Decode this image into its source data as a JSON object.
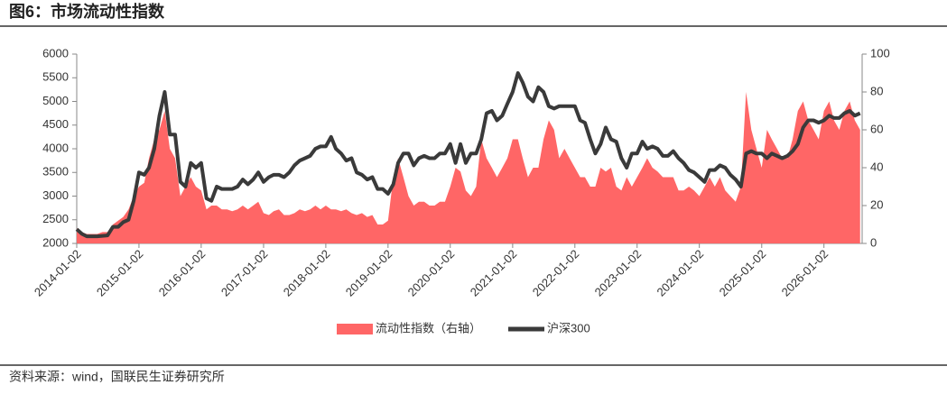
{
  "chart_data": {
    "type": "line",
    "title": "图6：市场流动性指数",
    "source": "资料来源：wind，国联民生证券研究所",
    "x": [
      "2014-01-02",
      "2014-02-02",
      "2014-03-02",
      "2014-04-02",
      "2014-05-02",
      "2014-06-02",
      "2014-07-02",
      "2014-08-02",
      "2014-09-02",
      "2014-10-02",
      "2014-11-02",
      "2014-12-02",
      "2015-01-02",
      "2015-02-02",
      "2015-03-02",
      "2015-04-02",
      "2015-05-02",
      "2015-06-02",
      "2015-07-02",
      "2015-08-02",
      "2015-09-02",
      "2015-10-02",
      "2015-11-02",
      "2015-12-02",
      "2016-01-02",
      "2016-02-02",
      "2016-03-02",
      "2016-04-02",
      "2016-05-02",
      "2016-06-02",
      "2016-07-02",
      "2016-08-02",
      "2016-09-02",
      "2016-10-02",
      "2016-11-02",
      "2016-12-02",
      "2017-01-02",
      "2017-02-02",
      "2017-03-02",
      "2017-04-02",
      "2017-05-02",
      "2017-06-02",
      "2017-07-02",
      "2017-08-02",
      "2017-09-02",
      "2017-10-02",
      "2017-11-02",
      "2017-12-02",
      "2018-01-02",
      "2018-02-02",
      "2018-03-02",
      "2018-04-02",
      "2018-05-02",
      "2018-06-02",
      "2018-07-02",
      "2018-08-02",
      "2018-09-02",
      "2018-10-02",
      "2018-11-02",
      "2018-12-02",
      "2019-01-02",
      "2019-02-02",
      "2019-03-02",
      "2019-04-02",
      "2019-05-02",
      "2019-06-02",
      "2019-07-02",
      "2019-08-02",
      "2019-09-02",
      "2019-10-02",
      "2019-11-02",
      "2019-12-02",
      "2020-01-02",
      "2020-02-02",
      "2020-03-02",
      "2020-04-02",
      "2020-05-02",
      "2020-06-02",
      "2020-07-02",
      "2020-08-02",
      "2020-09-02",
      "2020-10-02",
      "2020-11-02",
      "2020-12-02",
      "2021-01-02",
      "2021-02-02",
      "2021-03-02",
      "2021-04-02",
      "2021-05-02",
      "2021-06-02",
      "2021-07-02",
      "2021-08-02",
      "2021-09-02",
      "2021-10-02",
      "2021-11-02",
      "2021-12-02",
      "2022-01-02",
      "2022-02-02",
      "2022-03-02",
      "2022-04-02",
      "2022-05-02",
      "2022-06-02",
      "2022-07-02",
      "2022-08-02",
      "2022-09-02",
      "2022-10-02",
      "2022-11-02",
      "2022-12-02",
      "2023-01-02",
      "2023-02-02",
      "2023-03-02",
      "2023-04-02",
      "2023-05-02",
      "2023-06-02",
      "2023-07-02",
      "2023-08-02",
      "2023-09-02",
      "2023-10-02",
      "2023-11-02",
      "2023-12-02",
      "2024-01-02",
      "2024-02-02",
      "2024-03-02",
      "2024-04-02",
      "2024-05-02",
      "2024-06-02",
      "2024-07-02",
      "2024-08-02",
      "2024-09-02",
      "2024-10-02",
      "2024-11-02",
      "2024-12-02",
      "2025-01-02",
      "2025-02-02",
      "2025-03-02",
      "2025-04-02",
      "2025-05-02",
      "2025-06-02",
      "2025-07-02",
      "2025-08-02",
      "2025-09-02",
      "2025-10-02",
      "2025-11-02",
      "2025-12-02",
      "2026-01-02",
      "2026-02-02",
      "2026-03-02",
      "2026-04-02",
      "2026-05-02",
      "2026-06-02",
      "2026-07-02",
      "2026-08-02"
    ],
    "series": [
      {
        "name": "流动性指数（右轴）",
        "color": "#ff6666",
        "type": "area",
        "axis": "y2",
        "values": [
          8,
          6,
          5,
          5,
          5,
          6,
          6,
          10,
          12,
          14,
          18,
          25,
          30,
          32,
          45,
          55,
          60,
          70,
          50,
          45,
          25,
          30,
          35,
          30,
          28,
          18,
          20,
          20,
          18,
          18,
          17,
          18,
          20,
          18,
          20,
          22,
          16,
          15,
          17,
          18,
          15,
          15,
          16,
          18,
          17,
          18,
          20,
          18,
          20,
          18,
          18,
          17,
          18,
          16,
          15,
          16,
          14,
          15,
          10,
          10,
          12,
          35,
          45,
          35,
          25,
          20,
          22,
          22,
          20,
          20,
          22,
          22,
          30,
          40,
          38,
          28,
          25,
          30,
          55,
          45,
          40,
          35,
          40,
          45,
          55,
          55,
          45,
          35,
          40,
          40,
          55,
          65,
          60,
          45,
          50,
          45,
          40,
          35,
          35,
          30,
          30,
          40,
          38,
          40,
          30,
          28,
          35,
          30,
          35,
          40,
          45,
          40,
          38,
          35,
          35,
          35,
          28,
          28,
          30,
          28,
          25,
          30,
          35,
          30,
          35,
          28,
          25,
          22,
          30,
          80,
          60,
          50,
          40,
          60,
          55,
          50,
          45,
          45,
          55,
          70,
          75,
          65,
          60,
          55,
          70,
          75,
          65,
          60,
          70,
          75,
          65,
          60
        ]
      },
      {
        "name": "沪深300",
        "color": "#3a3a3a",
        "type": "line",
        "values": [
          2300,
          2200,
          2150,
          2150,
          2150,
          2160,
          2170,
          2350,
          2350,
          2450,
          2500,
          2900,
          3500,
          3450,
          3600,
          4000,
          4700,
          5200,
          4300,
          4300,
          3300,
          3200,
          3700,
          3600,
          3700,
          2950,
          2900,
          3200,
          3150,
          3150,
          3150,
          3200,
          3350,
          3250,
          3350,
          3500,
          3300,
          3400,
          3450,
          3450,
          3400,
          3500,
          3650,
          3750,
          3800,
          3850,
          4000,
          4050,
          4050,
          4250,
          4000,
          3900,
          3750,
          3800,
          3500,
          3450,
          3350,
          3400,
          3150,
          3150,
          3050,
          3250,
          3700,
          3900,
          3900,
          3650,
          3800,
          3850,
          3800,
          3800,
          3900,
          3900,
          4100,
          3700,
          4100,
          3700,
          3900,
          3900,
          4200,
          4750,
          4800,
          4600,
          4700,
          4950,
          5200,
          5600,
          5400,
          5100,
          5000,
          5300,
          5200,
          4900,
          4850,
          4900,
          4900,
          4900,
          4900,
          4600,
          4550,
          4200,
          3900,
          4100,
          4450,
          4200,
          4150,
          3800,
          3600,
          3900,
          3900,
          4150,
          4000,
          4050,
          4000,
          3850,
          3850,
          3950,
          3800,
          3700,
          3550,
          3500,
          3400,
          3300,
          3550,
          3550,
          3650,
          3600,
          3450,
          3350,
          3200,
          3900,
          3950,
          3900,
          3900,
          3800,
          3900,
          3850,
          3800,
          3850,
          3950,
          4100,
          4450,
          4600,
          4600,
          4550,
          4600,
          4700,
          4650,
          4650,
          4750,
          4800,
          4700,
          4750
        ]
      }
    ],
    "xlim": [
      "2014-01-02",
      "2026-08-14"
    ],
    "xticks": [
      "2014-01-02",
      "2015-01-02",
      "2016-01-02",
      "2017-01-02",
      "2018-01-02",
      "2019-01-02",
      "2020-01-02",
      "2021-01-02",
      "2022-01-02",
      "2023-01-02",
      "2024-01-02",
      "2025-01-02",
      "2026-01-02"
    ],
    "ylim": [
      2000,
      6000
    ],
    "yticks": [
      2000,
      2500,
      3000,
      3500,
      4000,
      4500,
      5000,
      5500,
      6000
    ],
    "y2lim": [
      0,
      100
    ],
    "y2ticks": [
      0,
      20,
      40,
      60,
      80,
      100
    ],
    "legend": "bottom"
  }
}
